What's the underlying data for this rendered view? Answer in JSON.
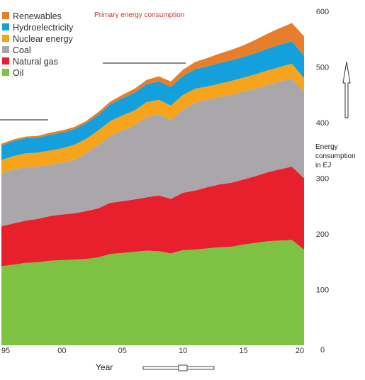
{
  "chart_data": {
    "type": "area",
    "stacked": true,
    "title": "Primary energy consumption",
    "xlabel": "Year",
    "ylabel": "Energy consumption in EJ",
    "ylabel_lines": [
      "Energy",
      "consumption",
      "in EJ"
    ],
    "x": [
      1995,
      1996,
      1997,
      1998,
      1999,
      2000,
      2001,
      2002,
      2003,
      2004,
      2005,
      2006,
      2007,
      2008,
      2009,
      2010,
      2011,
      2012,
      2013,
      2014,
      2015,
      2016,
      2017,
      2018,
      2019,
      2020
    ],
    "xticks": [
      {
        "value": 1995,
        "label": "95"
      },
      {
        "value": 2000,
        "label": "00"
      },
      {
        "value": 2005,
        "label": "05"
      },
      {
        "value": 2010,
        "label": "10"
      },
      {
        "value": 2015,
        "label": "15"
      },
      {
        "value": 2020,
        "label": "20"
      }
    ],
    "yticks": [
      {
        "value": 0,
        "label": "0"
      },
      {
        "value": 100,
        "label": "100"
      },
      {
        "value": 200,
        "label": "200"
      },
      {
        "value": 300,
        "label": "300"
      },
      {
        "value": 400,
        "label": "400"
      },
      {
        "value": 500,
        "label": "500"
      },
      {
        "value": 600,
        "label": "600"
      }
    ],
    "ylim": [
      0,
      600
    ],
    "xlim": [
      1995,
      2020
    ],
    "y_axis_side": "right",
    "legend_position": "top-left",
    "series": [
      {
        "name": "Oil",
        "color": "#7dc243",
        "values": [
          142,
          145,
          148,
          149,
          152,
          153,
          154,
          155,
          158,
          164,
          166,
          168,
          170,
          169,
          165,
          171,
          172,
          174,
          176,
          177,
          181,
          184,
          187,
          188,
          189,
          172
        ]
      },
      {
        "name": "Natural gas",
        "color": "#e8202e",
        "values": [
          72,
          74,
          76,
          78,
          80,
          82,
          83,
          86,
          88,
          92,
          93,
          94,
          96,
          100,
          98,
          103,
          106,
          110,
          113,
          115,
          117,
          120,
          124,
          128,
          132,
          128
        ]
      },
      {
        "name": "Coal",
        "color": "#a9a7aa",
        "values": [
          95,
          97,
          96,
          94,
          92,
          93,
          96,
          104,
          114,
          120,
          127,
          133,
          144,
          146,
          142,
          150,
          158,
          157,
          157,
          158,
          158,
          157,
          157,
          158,
          158,
          155
        ]
      },
      {
        "name": "Nuclear energy",
        "color": "#f6a41b",
        "values": [
          24,
          24,
          25,
          25,
          26,
          26,
          27,
          26,
          26,
          27,
          27,
          27,
          27,
          26,
          26,
          26,
          25,
          24,
          24,
          25,
          25,
          26,
          26,
          26,
          27,
          25
        ]
      },
      {
        "name": "Hydroelectricity",
        "color": "#14a0dc",
        "values": [
          26,
          27,
          27,
          27,
          28,
          28,
          28,
          28,
          28,
          30,
          31,
          32,
          32,
          33,
          33,
          34,
          35,
          36,
          37,
          37,
          37,
          38,
          39,
          40,
          40,
          40
        ]
      },
      {
        "name": "Renewables",
        "color": "#e67e2c",
        "values": [
          3,
          3,
          3,
          3,
          4,
          4,
          4,
          4,
          5,
          5,
          6,
          7,
          8,
          9,
          10,
          11,
          13,
          15,
          17,
          19,
          21,
          24,
          27,
          30,
          33,
          35
        ]
      }
    ]
  }
}
